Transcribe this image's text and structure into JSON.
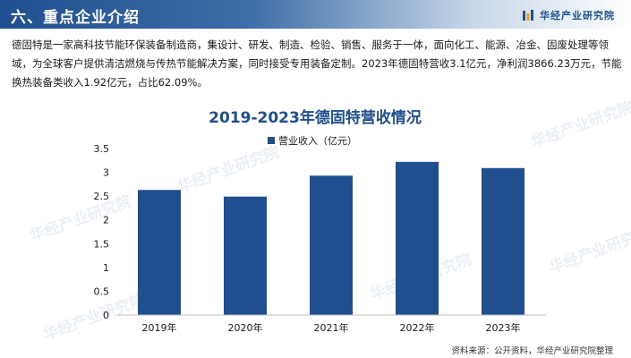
{
  "page": {
    "section_title": "六、重点企业介绍",
    "brand_name": "华经产业研究院",
    "intro_text": "德固特是一家高科技节能环保装备制造商，集设计、研发、制造、检验、销售、服务于一体，面向化工、能源、冶金、固废处理等领域，为全球客户提供清洁燃烧与传热节能解决方案，同时接受专用装备定制。2023年德固特营收3.1亿元，净利润3866.23万元，节能换热装备类收入1.92亿元，占比62.09%。",
    "watermark_text": "华经产业研究院",
    "source_text": "资料来源：公开资料，华经产业研究院整理"
  },
  "colors": {
    "bar": "#1f4f8f",
    "title": "#1f4f8f",
    "header_dark": "#1f4f8f",
    "axis_text": "#1a1a1a"
  },
  "chart_data": {
    "type": "bar",
    "title": "2019-2023年德固特营收情况",
    "categories": [
      "2019年",
      "2020年",
      "2021年",
      "2022年",
      "2023年"
    ],
    "series": [
      {
        "name": "营业收入（亿元）",
        "values": [
          2.63,
          2.49,
          2.93,
          3.22,
          3.09
        ]
      }
    ],
    "yticks": [
      "0",
      "0.5",
      "1",
      "1.5",
      "2",
      "2.5",
      "3",
      "3.5"
    ],
    "ylim": [
      0,
      3.5
    ],
    "legend_position": "top-center",
    "grid": false
  }
}
